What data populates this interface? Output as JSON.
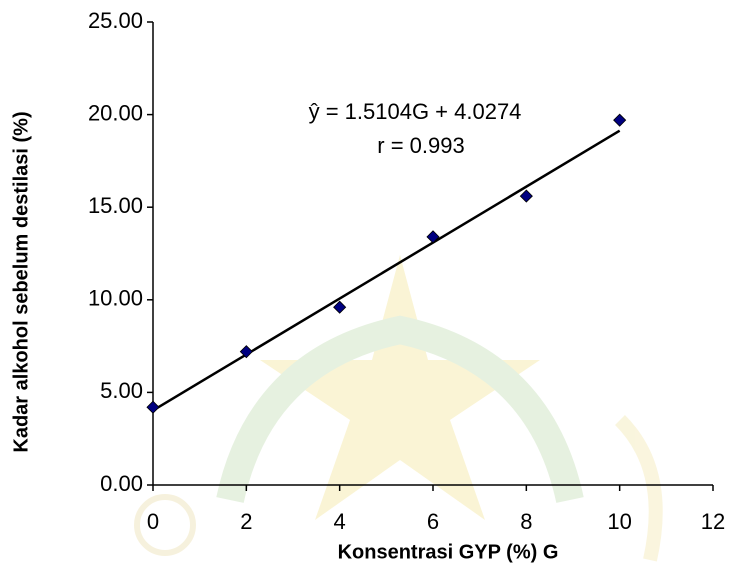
{
  "chart_data": {
    "type": "scatter",
    "x_label": "Konsentrasi GYP (%) G",
    "y_label": "Kadar alkohol sebelum destilasi (%)",
    "annotations": [
      "ŷ = 1.5104G + 4.0274",
      "r = 0.993"
    ],
    "series": [
      {
        "color": "#000080",
        "x": [
          0,
          2,
          4,
          6,
          8,
          10
        ],
        "values": [
          4.2,
          7.2,
          9.6,
          13.4,
          15.6,
          19.7
        ]
      }
    ],
    "trendline": {
      "slope": 1.5104,
      "intercept": 4.0274,
      "x": [
        0,
        10
      ],
      "color": "#000000"
    },
    "xlim": [
      0,
      12
    ],
    "xticks": [
      0,
      2,
      4,
      6,
      8,
      10,
      12
    ],
    "ylim": [
      0,
      25
    ],
    "yticks": [
      {
        "value": 0,
        "label": "0.00"
      },
      {
        "value": 5,
        "label": "5.00"
      },
      {
        "value": 10,
        "label": "10.00"
      },
      {
        "value": 15,
        "label": "15.00"
      },
      {
        "value": 20,
        "label": "20.00"
      },
      {
        "value": 25,
        "label": "25.00"
      }
    ],
    "grid": false
  }
}
